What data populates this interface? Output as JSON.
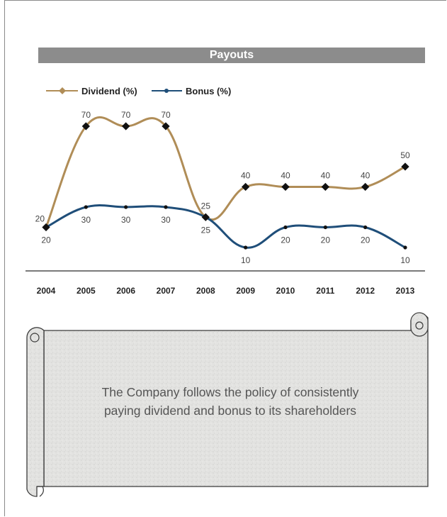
{
  "title": "Payouts",
  "colors": {
    "dividend": "#b08d57",
    "bonus": "#1f4e79",
    "title_bg": "#8c8c8c",
    "axis": "#7a7a7a"
  },
  "chart_data": {
    "type": "line",
    "title": "Payouts",
    "x": [
      "2004",
      "2005",
      "2006",
      "2007",
      "2008",
      "2009",
      "2010",
      "2011",
      "2012",
      "2013"
    ],
    "series": [
      {
        "name": "Dividend (%)",
        "values": [
          20,
          70,
          70,
          70,
          25,
          40,
          40,
          40,
          40,
          50
        ]
      },
      {
        "name": "Bonus (%)",
        "values": [
          20,
          30,
          30,
          30,
          25,
          10,
          20,
          20,
          20,
          10
        ]
      }
    ],
    "data_labels": {
      "dividend": [
        "20",
        "70",
        "70",
        "70",
        "25",
        "40",
        "40",
        "40",
        "40",
        "50"
      ],
      "bonus": [
        "20",
        "30",
        "30",
        "30",
        "25",
        "10",
        "20",
        "20",
        "20",
        "10"
      ]
    },
    "xlabel": "",
    "ylabel": "",
    "ylim": [
      0,
      80
    ],
    "grid": false,
    "legend": "top-left",
    "smooth": true
  },
  "scroll_text": {
    "line1": "The Company follows the policy of consistently",
    "line2": "paying dividend and bonus to its shareholders"
  }
}
